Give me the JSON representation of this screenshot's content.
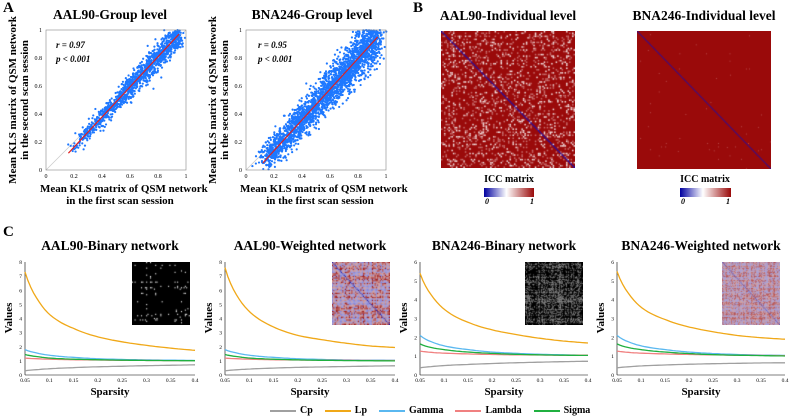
{
  "panel_labels": {
    "a": "A",
    "b": "B",
    "c": "C"
  },
  "colors": {
    "scatter": "#1e78ff",
    "fit": "#e02020",
    "Cp": "#a0a0a0",
    "Lp": "#f0a818",
    "Gamma": "#5ab8f0",
    "Lambda": "#f08080",
    "Sigma": "#20b040",
    "icc_low": "#0000a0",
    "icc_high": "#9a0a0a"
  },
  "chart_data": [
    {
      "type": "scatter",
      "id": "a1",
      "title": "AAL90-Group level",
      "xlabel": [
        "Mean KLS matrix of QSM network",
        "in the first scan session"
      ],
      "ylabel": [
        "Mean KLS matrix of QSM network",
        "in the second scan session"
      ],
      "xlim": [
        0,
        1
      ],
      "ylim": [
        0,
        1
      ],
      "xticks": [
        "0",
        "0.2",
        "0.4",
        "0.6",
        "0.8",
        "1"
      ],
      "yticks": [
        "0",
        "0.2",
        "0.4",
        "0.6",
        "0.8",
        "1"
      ],
      "annotations": [
        "r = 0.97",
        "p < 0.001"
      ],
      "fit_line": [
        [
          0.16,
          0.12
        ],
        [
          0.95,
          0.97
        ]
      ],
      "point_spread": 0.035,
      "x_range": [
        0.16,
        0.96
      ]
    },
    {
      "type": "scatter",
      "id": "a2",
      "title": "BNA246-Group level",
      "xlabel": [
        "Mean KLS matrix of QSM network",
        "in the first scan session"
      ],
      "ylabel": [
        "Mean KLS matrix of QSM network",
        "in the second scan session"
      ],
      "xlim": [
        0,
        1
      ],
      "ylim": [
        0,
        1
      ],
      "xticks": [
        "0",
        "0.2",
        "0.4",
        "0.6",
        "0.8",
        "1"
      ],
      "yticks": [
        "0",
        "0.2",
        "0.4",
        "0.6",
        "0.8",
        "1"
      ],
      "annotations": [
        "r = 0.95",
        "p < 0.001"
      ],
      "fit_line": [
        [
          0.12,
          0.05
        ],
        [
          0.94,
          0.95
        ]
      ],
      "point_spread": 0.06,
      "x_range": [
        0.12,
        0.94
      ]
    },
    {
      "type": "heatmap",
      "id": "b1",
      "title": "AAL90-Individual level",
      "colorbar_label": "ICC matrix",
      "colorbar_ticks": [
        "0",
        "1"
      ],
      "size": 90
    },
    {
      "type": "heatmap",
      "id": "b2",
      "title": "BNA246-Individual level",
      "colorbar_label": "ICC matrix",
      "colorbar_ticks": [
        "0",
        "1"
      ],
      "size": 246
    },
    {
      "type": "line",
      "id": "c1",
      "title": "AAL90-Binary network",
      "xlabel": "Sparsity",
      "ylabel": "Values",
      "inset": "binary",
      "x": [
        0.05,
        0.075,
        0.1,
        0.15,
        0.2,
        0.25,
        0.3,
        0.35,
        0.4
      ],
      "xlim": [
        0.05,
        0.4
      ],
      "ylim": [
        0,
        8
      ],
      "xticks": [
        "0.05",
        "0.1",
        "0.15",
        "0.2",
        "0.25",
        "0.3",
        "0.35",
        "0.4"
      ],
      "yticks": [
        "0",
        "1",
        "2",
        "3",
        "4",
        "5",
        "6",
        "7",
        "8"
      ],
      "series": [
        {
          "name": "Cp",
          "values": [
            0.3,
            0.38,
            0.44,
            0.52,
            0.58,
            0.62,
            0.66,
            0.69,
            0.72
          ]
        },
        {
          "name": "Lp",
          "values": [
            7.3,
            5.4,
            4.3,
            3.3,
            2.7,
            2.35,
            2.1,
            1.9,
            1.75
          ]
        },
        {
          "name": "Gamma",
          "values": [
            1.8,
            1.55,
            1.4,
            1.25,
            1.15,
            1.1,
            1.07,
            1.05,
            1.03
          ]
        },
        {
          "name": "Lambda",
          "values": [
            1.2,
            1.15,
            1.12,
            1.08,
            1.06,
            1.04,
            1.03,
            1.02,
            1.02
          ]
        },
        {
          "name": "Sigma",
          "values": [
            1.45,
            1.3,
            1.2,
            1.12,
            1.08,
            1.05,
            1.03,
            1.02,
            1.01
          ]
        }
      ]
    },
    {
      "type": "line",
      "id": "c2",
      "title": "AAL90-Weighted network",
      "xlabel": "Sparsity",
      "ylabel": "Values",
      "inset": "weighted",
      "x": [
        0.05,
        0.075,
        0.1,
        0.15,
        0.2,
        0.25,
        0.3,
        0.35,
        0.4
      ],
      "xlim": [
        0.05,
        0.4
      ],
      "ylim": [
        0,
        8
      ],
      "xticks": [
        "0.05",
        "0.1",
        "0.15",
        "0.2",
        "0.25",
        "0.3",
        "0.35",
        "0.4"
      ],
      "yticks": [
        "0",
        "1",
        "2",
        "3",
        "4",
        "5",
        "6",
        "7",
        "8"
      ],
      "series": [
        {
          "name": "Cp",
          "values": [
            0.3,
            0.37,
            0.42,
            0.49,
            0.54,
            0.57,
            0.6,
            0.63,
            0.65
          ]
        },
        {
          "name": "Lp",
          "values": [
            7.6,
            5.6,
            4.5,
            3.4,
            2.8,
            2.5,
            2.25,
            2.05,
            1.95
          ]
        },
        {
          "name": "Gamma",
          "values": [
            1.8,
            1.55,
            1.4,
            1.25,
            1.15,
            1.1,
            1.07,
            1.05,
            1.04
          ]
        },
        {
          "name": "Lambda",
          "values": [
            1.2,
            1.15,
            1.12,
            1.08,
            1.06,
            1.05,
            1.04,
            1.03,
            1.03
          ]
        },
        {
          "name": "Sigma",
          "values": [
            1.45,
            1.3,
            1.2,
            1.12,
            1.07,
            1.04,
            1.02,
            1.01,
            1.0
          ]
        }
      ]
    },
    {
      "type": "line",
      "id": "c3",
      "title": "BNA246-Binary network",
      "xlabel": "Sparsity",
      "ylabel": "Values",
      "inset": "binary",
      "x": [
        0.05,
        0.075,
        0.1,
        0.15,
        0.2,
        0.25,
        0.3,
        0.35,
        0.4
      ],
      "xlim": [
        0.05,
        0.4
      ],
      "ylim": [
        0,
        6
      ],
      "xticks": [
        "0.05",
        "0.1",
        "0.15",
        "0.2",
        "0.25",
        "0.3",
        "0.35",
        "0.4"
      ],
      "yticks": [
        "0",
        "1",
        "2",
        "3",
        "4",
        "5",
        "6"
      ],
      "series": [
        {
          "name": "Cp",
          "values": [
            0.38,
            0.45,
            0.5,
            0.56,
            0.61,
            0.65,
            0.68,
            0.71,
            0.73
          ]
        },
        {
          "name": "Lp",
          "values": [
            5.4,
            4.2,
            3.5,
            2.8,
            2.4,
            2.15,
            1.95,
            1.8,
            1.7
          ]
        },
        {
          "name": "Gamma",
          "values": [
            2.1,
            1.75,
            1.55,
            1.35,
            1.22,
            1.15,
            1.1,
            1.07,
            1.05
          ]
        },
        {
          "name": "Lambda",
          "values": [
            1.27,
            1.2,
            1.16,
            1.12,
            1.09,
            1.07,
            1.06,
            1.05,
            1.05
          ]
        },
        {
          "name": "Sigma",
          "values": [
            1.65,
            1.45,
            1.35,
            1.22,
            1.15,
            1.1,
            1.07,
            1.05,
            1.04
          ]
        }
      ]
    },
    {
      "type": "line",
      "id": "c4",
      "title": "BNA246-Weighted network",
      "xlabel": "Sparsity",
      "ylabel": "Values",
      "inset": "weighted",
      "x": [
        0.05,
        0.075,
        0.1,
        0.15,
        0.2,
        0.25,
        0.3,
        0.35,
        0.4
      ],
      "xlim": [
        0.05,
        0.4
      ],
      "ylim": [
        0,
        6
      ],
      "xticks": [
        "0.05",
        "0.1",
        "0.15",
        "0.2",
        "0.25",
        "0.3",
        "0.35",
        "0.4"
      ],
      "yticks": [
        "0",
        "1",
        "2",
        "3",
        "4",
        "5",
        "6"
      ],
      "series": [
        {
          "name": "Cp",
          "values": [
            0.38,
            0.44,
            0.48,
            0.53,
            0.57,
            0.6,
            0.62,
            0.64,
            0.65
          ]
        },
        {
          "name": "Lp",
          "values": [
            5.5,
            4.3,
            3.6,
            2.95,
            2.55,
            2.3,
            2.1,
            1.98,
            1.9
          ]
        },
        {
          "name": "Gamma",
          "values": [
            2.1,
            1.75,
            1.55,
            1.35,
            1.22,
            1.14,
            1.09,
            1.06,
            1.04
          ]
        },
        {
          "name": "Lambda",
          "values": [
            1.27,
            1.2,
            1.16,
            1.12,
            1.09,
            1.07,
            1.05,
            1.04,
            1.03
          ]
        },
        {
          "name": "Sigma",
          "values": [
            1.65,
            1.45,
            1.35,
            1.22,
            1.14,
            1.08,
            1.05,
            1.03,
            1.01
          ]
        }
      ]
    }
  ],
  "legend": [
    "Cp",
    "Lp",
    "Gamma",
    "Lambda",
    "Sigma"
  ]
}
